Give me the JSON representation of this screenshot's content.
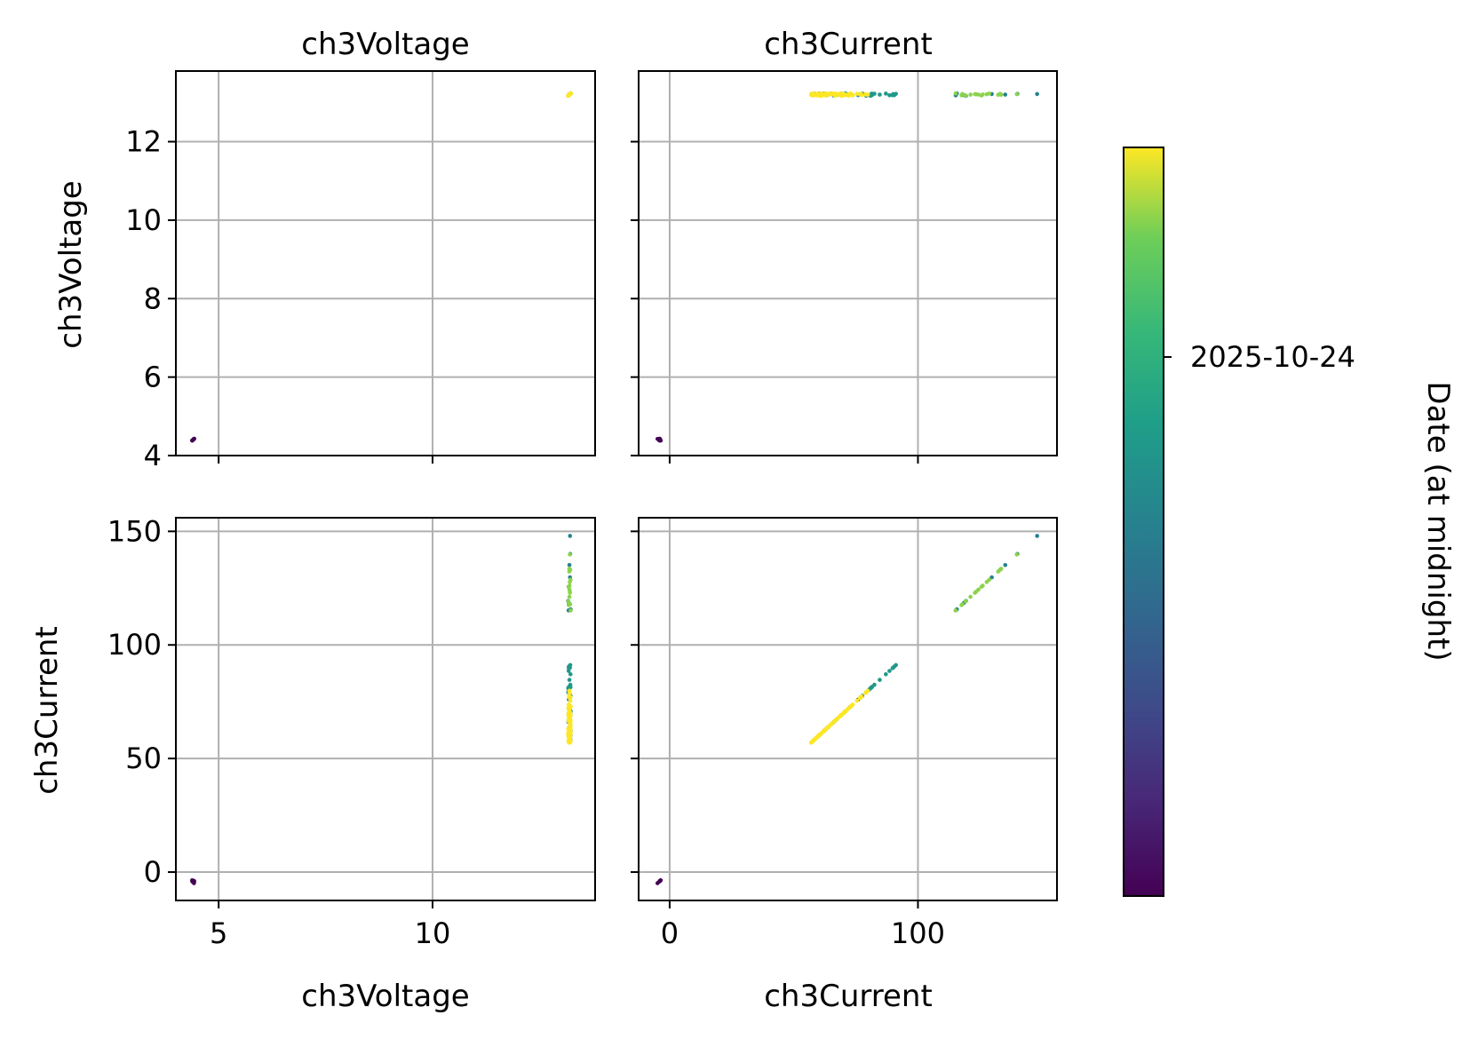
{
  "chart_data": {
    "type": "scatter",
    "layout": "pairplot-2x2",
    "variables": [
      "ch3Voltage",
      "ch3Current"
    ],
    "column_titles": [
      "ch3Voltage",
      "ch3Current"
    ],
    "row_labels": [
      "ch3Voltage",
      "ch3Current"
    ],
    "x_labels": [
      "ch3Voltage",
      "ch3Current"
    ],
    "grid": true,
    "axes": {
      "ch3Voltage": {
        "lim": [
          4.0,
          13.8
        ],
        "ticks_x": [
          5,
          10
        ],
        "tick_labels_x": [
          "5",
          "10"
        ],
        "ticks_y": [
          4,
          6,
          8,
          10,
          12
        ],
        "tick_labels_y": [
          "4",
          "6",
          "8",
          "10",
          "12"
        ]
      },
      "ch3Current": {
        "lim": [
          -12.5,
          156
        ],
        "ticks_x": [
          0,
          100
        ],
        "tick_labels_x": [
          "0",
          "100"
        ],
        "ticks_y": [
          0,
          50,
          100,
          150
        ],
        "tick_labels_y": [
          "0",
          "50",
          "100",
          "150"
        ]
      }
    },
    "colorbar": {
      "label": "Date (at midnight)",
      "colormap": "viridis",
      "ticks": [
        0.72
      ],
      "tick_labels": [
        "2025-10-24"
      ]
    },
    "clusters": [
      {
        "voltage": 4.4,
        "current_range": [
          -5,
          -3
        ],
        "color_value": 0.0,
        "n": 8
      },
      {
        "voltage": 13.2,
        "current_range": [
          57,
          80
        ],
        "color_value": 1.0,
        "n": 90
      },
      {
        "voltage": 13.2,
        "current_range": [
          57,
          80
        ],
        "color_value": 0.55,
        "n": 25
      },
      {
        "voltage": 13.2,
        "current_range": [
          80,
          95
        ],
        "color_value": 0.6,
        "n": 14
      },
      {
        "voltage": 13.2,
        "current_range": [
          115,
          141
        ],
        "color_value": 0.9,
        "n": 16
      },
      {
        "voltage": 13.2,
        "current_range": [
          115,
          141
        ],
        "color_value": 0.5,
        "n": 8
      },
      {
        "voltage": 13.2,
        "current_range": [
          148,
          149
        ],
        "color_value": 0.5,
        "n": 1
      }
    ]
  }
}
